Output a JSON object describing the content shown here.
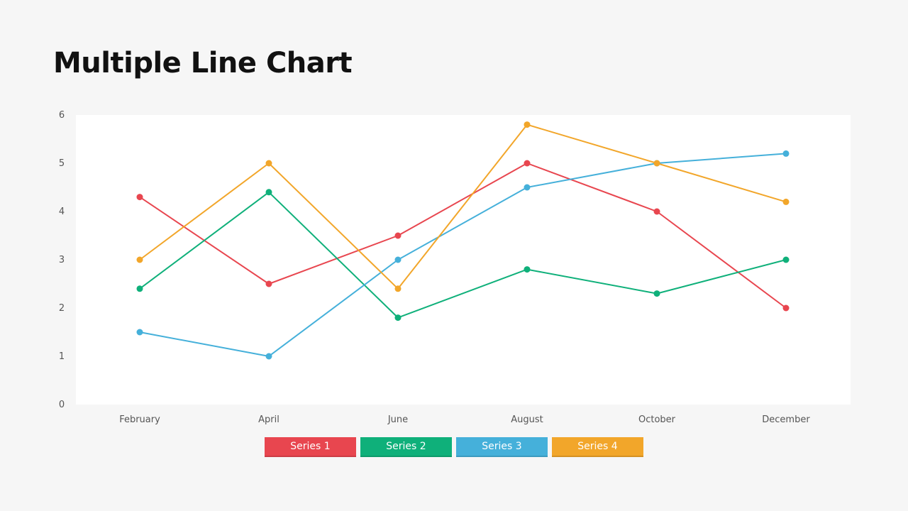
{
  "title": "Multiple Line Chart",
  "chart_data": {
    "type": "line",
    "categories": [
      "February",
      "April",
      "June",
      "August",
      "October",
      "December"
    ],
    "series": [
      {
        "name": "Series 1",
        "color": "#e8464f",
        "values": [
          4.3,
          2.5,
          3.5,
          5.0,
          4.0,
          2.0
        ]
      },
      {
        "name": "Series 2",
        "color": "#0fb07a",
        "values": [
          2.4,
          4.4,
          1.8,
          2.8,
          2.3,
          3.0
        ]
      },
      {
        "name": "Series 3",
        "color": "#45b0da",
        "values": [
          1.5,
          1.0,
          3.0,
          4.5,
          5.0,
          5.2
        ]
      },
      {
        "name": "Series 4",
        "color": "#f2a62a",
        "values": [
          3.0,
          5.0,
          2.4,
          5.8,
          5.0,
          4.2
        ]
      }
    ],
    "yticks": [
      "0",
      "1",
      "2",
      "3",
      "4",
      "5",
      "6"
    ],
    "ylim": [
      0,
      6
    ],
    "grid": false,
    "legend_position": "bottom"
  }
}
